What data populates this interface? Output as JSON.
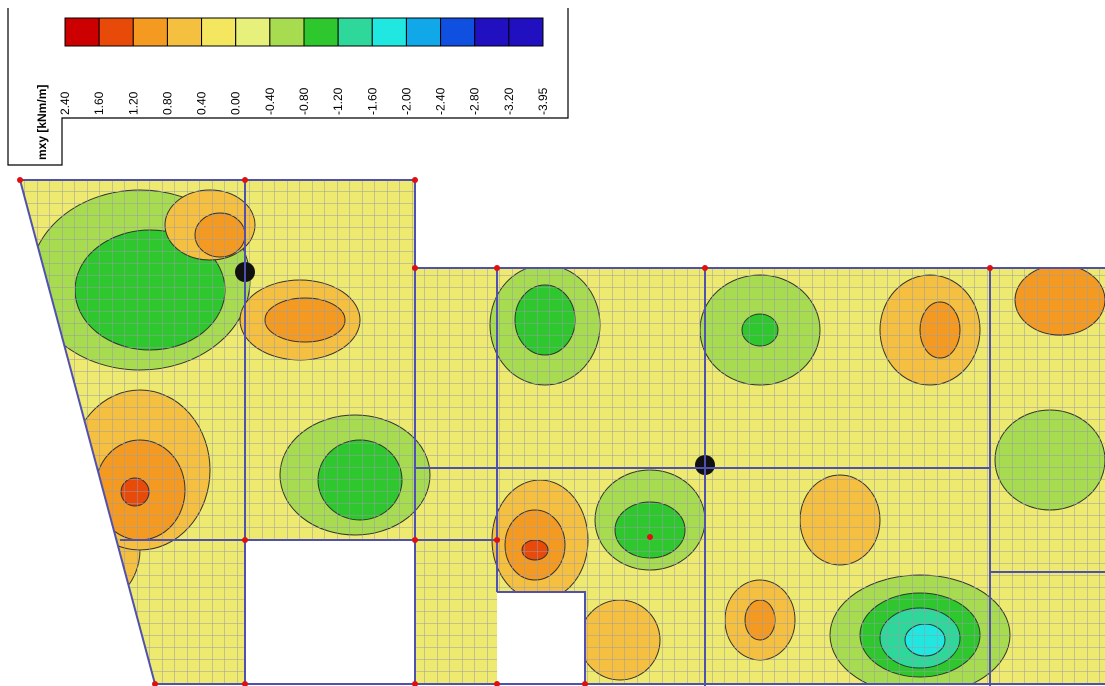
{
  "legend": {
    "title": "mxy [kNm/m]",
    "labels": [
      "2.40",
      "1.60",
      "1.20",
      "0.80",
      "0.40",
      "0.00",
      "-0.40",
      "-0.80",
      "-1.20",
      "-1.60",
      "-2.00",
      "-2.40",
      "-2.80",
      "-3.20",
      "-3.95"
    ],
    "colors": [
      "#cc0000",
      "#e84a0a",
      "#f59a20",
      "#f5c040",
      "#f5e660",
      "#e6f07a",
      "#a8dc50",
      "#2ec82e",
      "#2ed89a",
      "#20e8e0",
      "#10a8e8",
      "#1050e0",
      "#2010c0",
      "#2010c0"
    ]
  }
}
